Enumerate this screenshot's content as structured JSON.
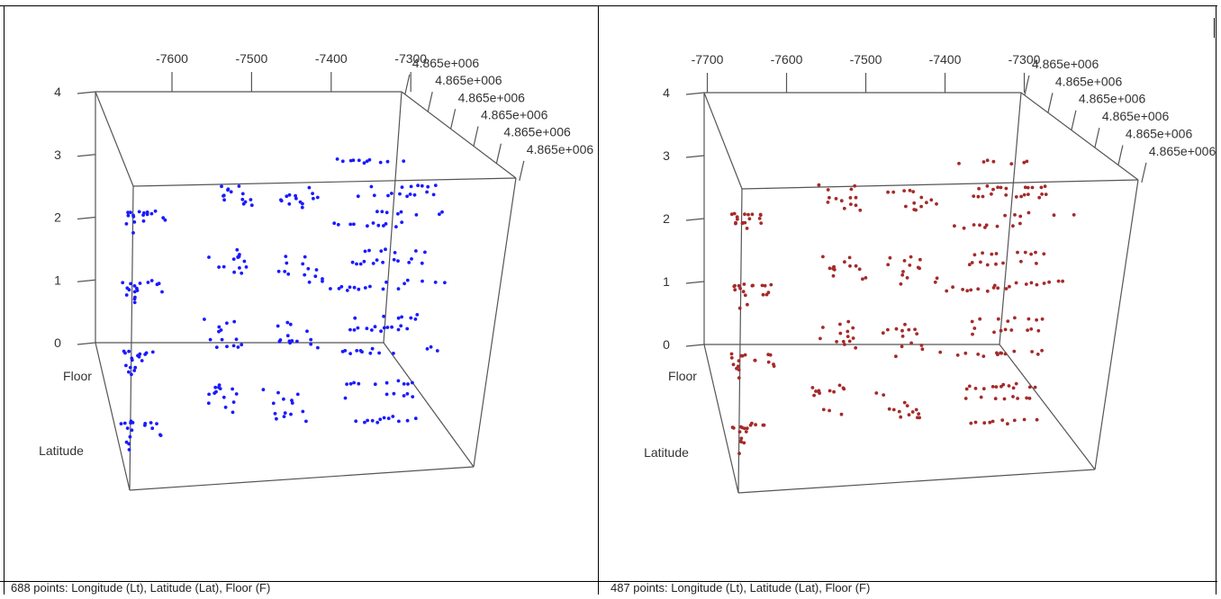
{
  "chart_data": [
    {
      "type": "scatter",
      "axes": [
        "Longitude",
        "Latitude",
        "Floor"
      ],
      "xlabel": "",
      "ylabel": "Latitude",
      "zlabel": "Floor",
      "x_ticks": [
        "-7600",
        "-7500",
        "-7400",
        "-7300"
      ],
      "y_ticks": [
        "4.865e+006",
        "4.865e+006",
        "4.865e+006",
        "4.865e+006",
        "4.865e+006",
        "4.865e+006"
      ],
      "z_ticks": [
        "0",
        "1",
        "2",
        "3",
        "4"
      ],
      "zlim": [
        0,
        4
      ],
      "color": "#1a1aff",
      "caption": "688 points: Longitude (Lt), Latitude (Lat), Floor (F)",
      "floors": [
        0,
        1,
        2,
        3
      ]
    },
    {
      "type": "scatter",
      "axes": [
        "Longitude",
        "Latitude",
        "Floor"
      ],
      "xlabel": "",
      "ylabel": "Latitude",
      "zlabel": "Floor",
      "x_ticks": [
        "-7700",
        "-7600",
        "-7500",
        "-7400",
        "-7300"
      ],
      "y_ticks": [
        "4.865e+006",
        "4.865e+006",
        "4.865e+006",
        "4.865e+006",
        "4.865e+006",
        "4.865e+006"
      ],
      "z_ticks": [
        "0",
        "1",
        "2",
        "3",
        "4"
      ],
      "zlim": [
        0,
        4
      ],
      "color": "#a52a2a",
      "caption": "487 points: Longitude (Lt), Latitude (Lat), Floor (F)",
      "floors": [
        0,
        1,
        2,
        3
      ]
    }
  ]
}
